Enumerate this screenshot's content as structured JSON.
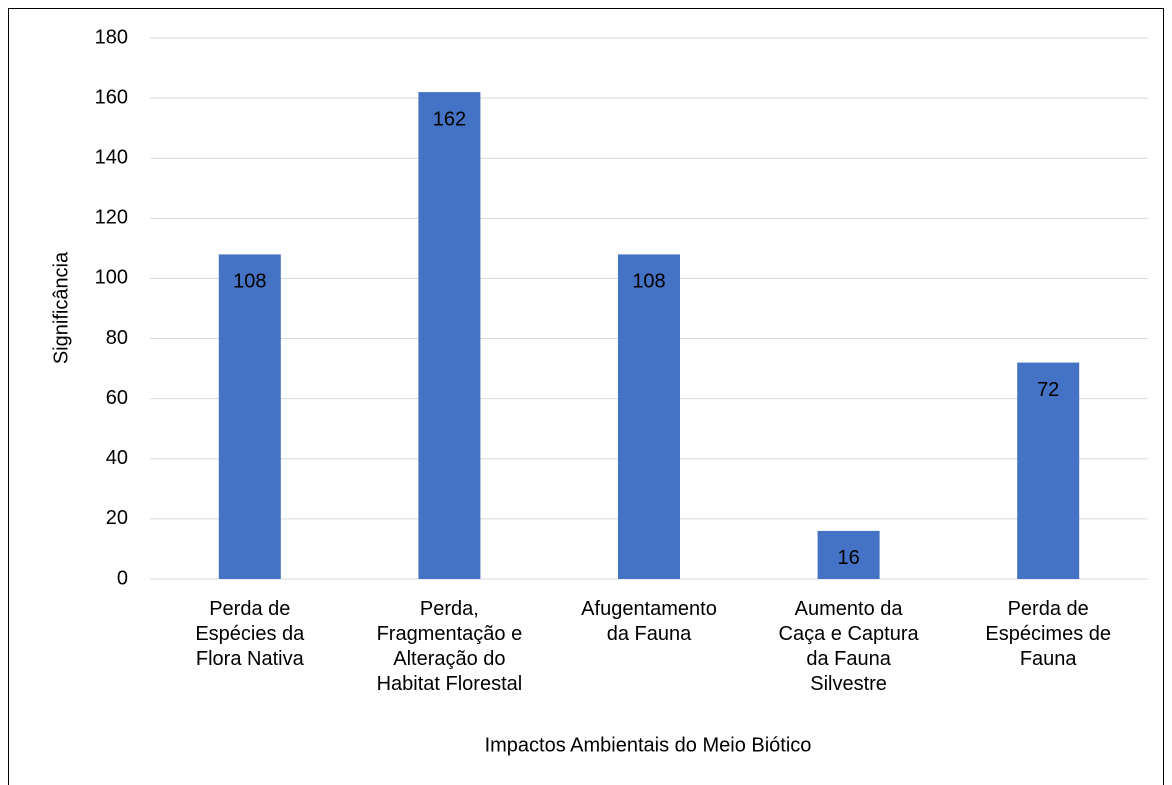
{
  "chart_data": {
    "type": "bar",
    "x_label": "Impactos Ambientais do Meio Biótico",
    "y_label": "Significância",
    "categories": [
      "Perda de\nEspécies da\nFlora Nativa",
      "Perda,\nFragmentação e\nAlteração do\nHabitat Florestal",
      "Afugentamento\nda Fauna",
      "Aumento da\nCaça e Captura\nda Fauna\nSilvestre",
      "Perda de\nEspécimes de\nFauna"
    ],
    "values": [
      108,
      162,
      108,
      16,
      72
    ],
    "color": "#4472c4",
    "ylim": [
      0,
      180
    ],
    "yticks": [
      0,
      20,
      40,
      60,
      80,
      100,
      120,
      140,
      160,
      180
    ],
    "grid": true
  }
}
